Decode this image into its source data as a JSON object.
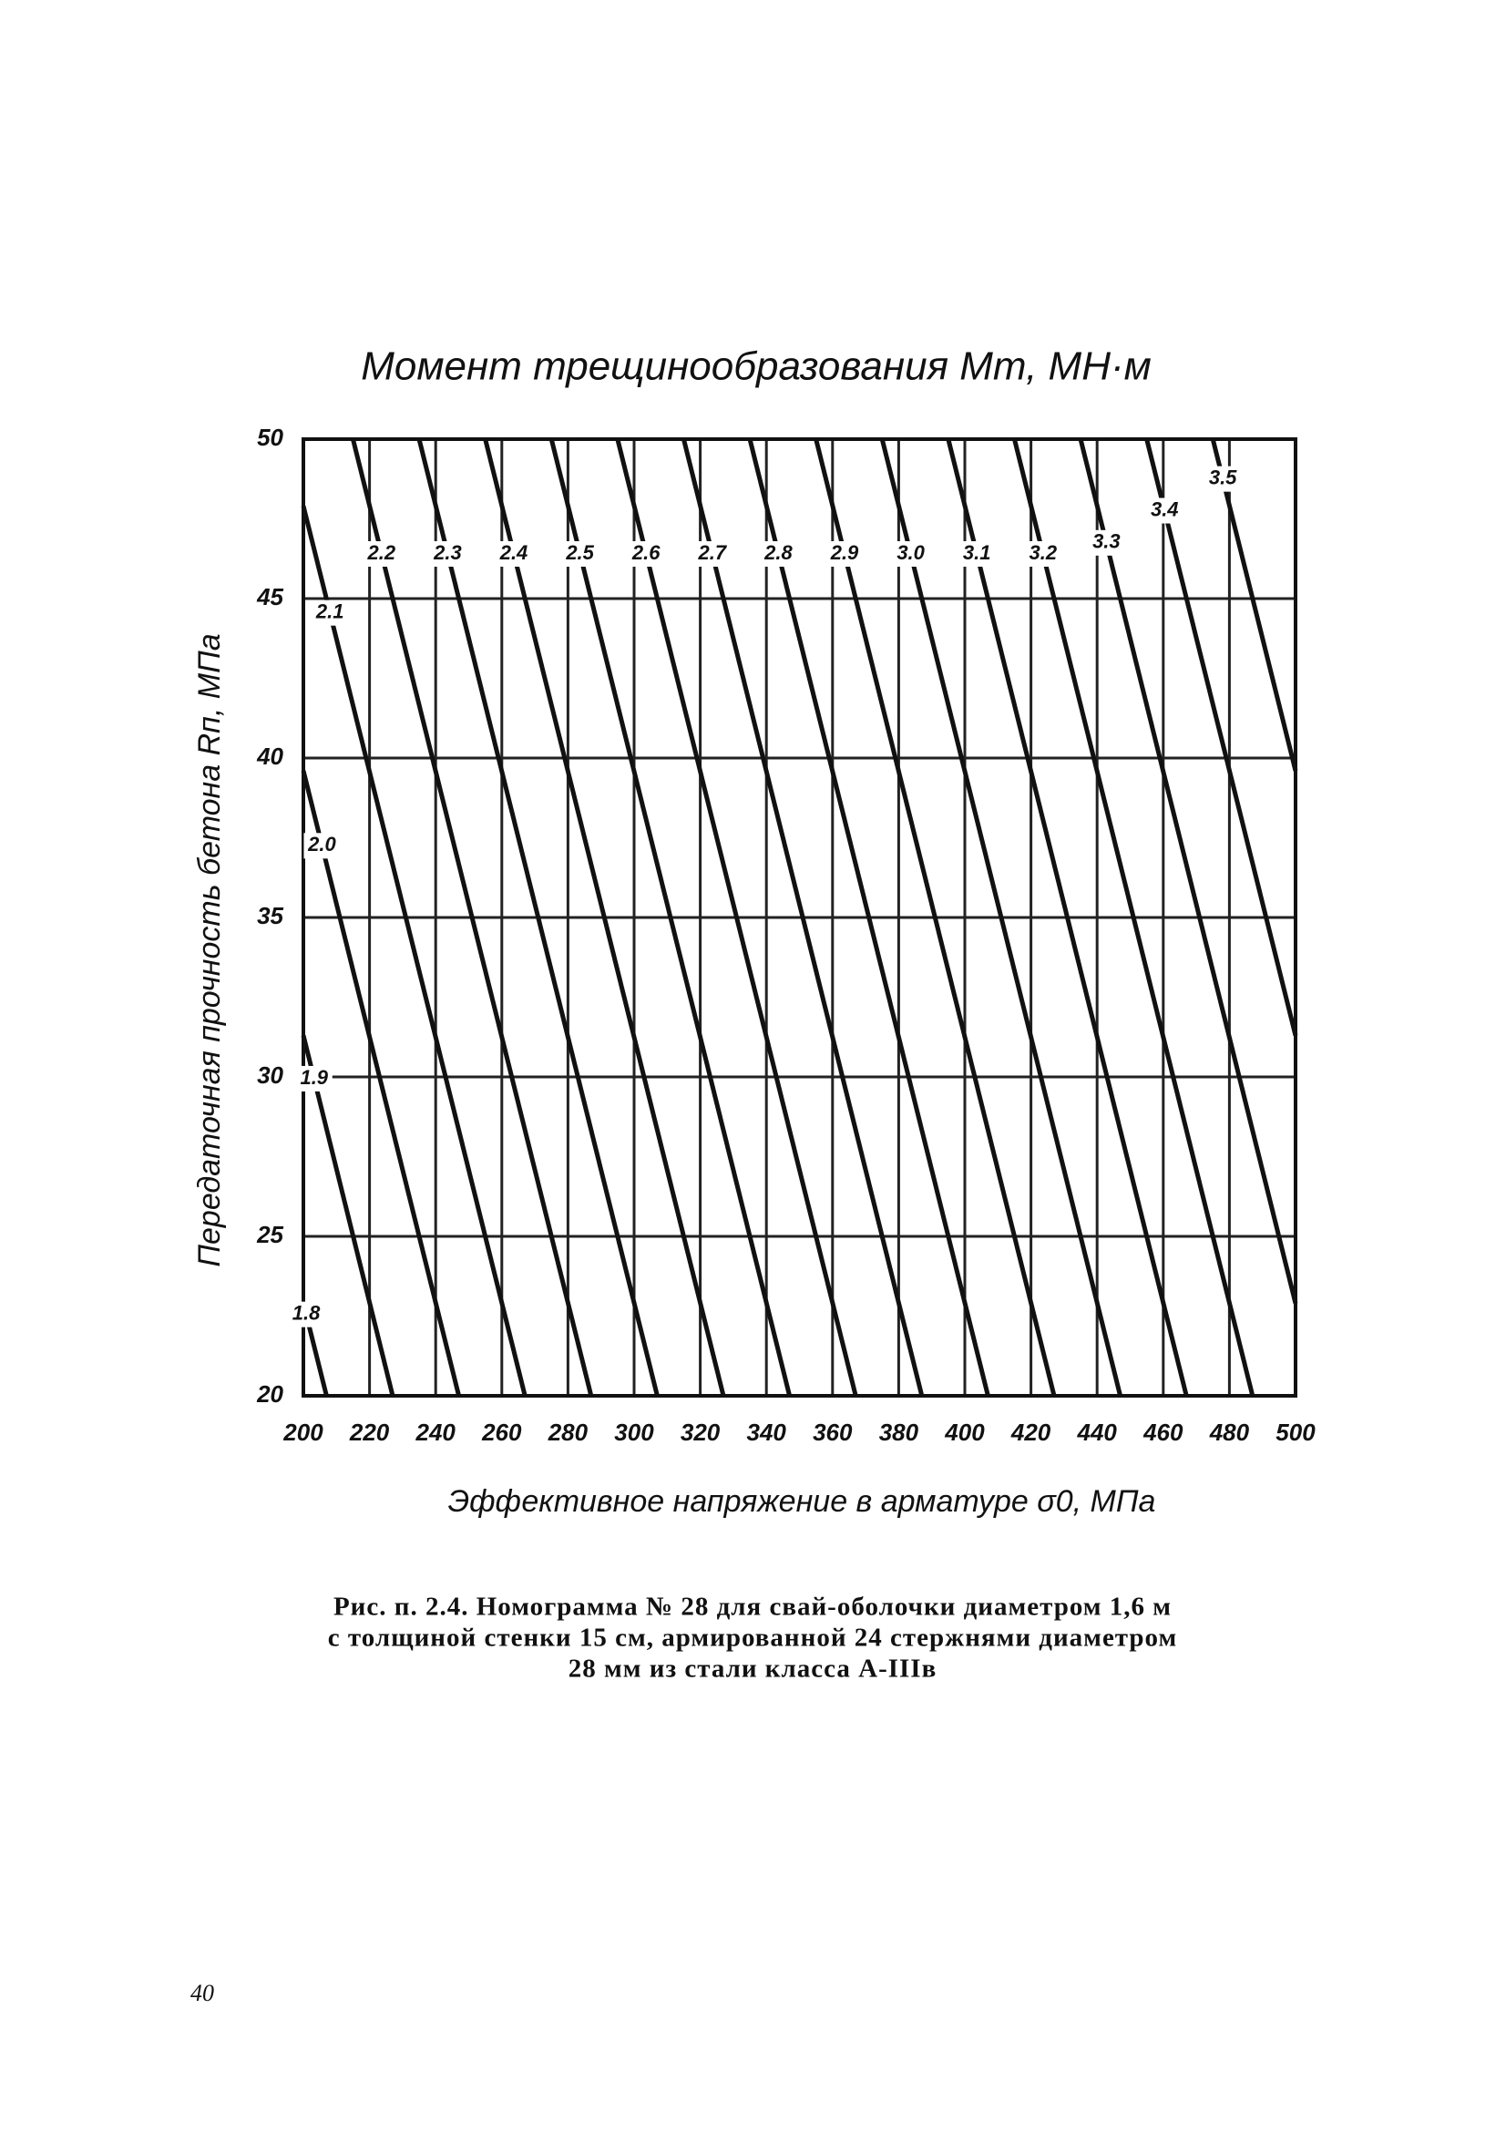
{
  "chart_data": {
    "type": "line",
    "title": "Момент трещинообразования  Мт, МН·м",
    "x_label": "Эффективное напряжение в арматуре σ0, МПа",
    "y_label": "Передаточная прочность бетона Rп, МПа",
    "xlim": [
      200,
      500
    ],
    "ylim": [
      20,
      50
    ],
    "xticks": [
      200,
      220,
      240,
      260,
      280,
      300,
      320,
      340,
      360,
      380,
      400,
      420,
      440,
      460,
      480,
      500
    ],
    "yticks": [
      20,
      25,
      30,
      35,
      40,
      45,
      50
    ],
    "grid": true,
    "color": "#111",
    "series": [
      {
        "name": "1.8",
        "x": [
          200,
          207
        ],
        "values": [
          22.9,
          20
        ]
      },
      {
        "name": "1.9",
        "x": [
          200,
          227
        ],
        "values": [
          31.3,
          20
        ]
      },
      {
        "name": "2.0",
        "x": [
          200,
          247
        ],
        "values": [
          39.6,
          20
        ]
      },
      {
        "name": "2.1",
        "x": [
          200,
          267
        ],
        "values": [
          47.9,
          20
        ]
      },
      {
        "name": "2.2",
        "x": [
          215,
          287
        ],
        "values": [
          50,
          20
        ]
      },
      {
        "name": "2.3",
        "x": [
          235,
          307
        ],
        "values": [
          50,
          20
        ]
      },
      {
        "name": "2.4",
        "x": [
          255,
          327
        ],
        "values": [
          50,
          20
        ]
      },
      {
        "name": "2.5",
        "x": [
          275,
          347
        ],
        "values": [
          50,
          20
        ]
      },
      {
        "name": "2.6",
        "x": [
          295,
          367
        ],
        "values": [
          50,
          20
        ]
      },
      {
        "name": "2.7",
        "x": [
          315,
          387
        ],
        "values": [
          50,
          20
        ]
      },
      {
        "name": "2.8",
        "x": [
          335,
          407
        ],
        "values": [
          50,
          20
        ]
      },
      {
        "name": "2.9",
        "x": [
          355,
          427
        ],
        "values": [
          50,
          20
        ]
      },
      {
        "name": "3.0",
        "x": [
          375,
          447
        ],
        "values": [
          50,
          20
        ]
      },
      {
        "name": "3.1",
        "x": [
          395,
          467
        ],
        "values": [
          50,
          20
        ]
      },
      {
        "name": "3.2",
        "x": [
          415,
          487
        ],
        "values": [
          50,
          20
        ]
      },
      {
        "name": "3.3",
        "x": [
          435,
          500
        ],
        "values": [
          50,
          22.9
        ]
      },
      {
        "name": "3.4",
        "x": [
          455,
          500
        ],
        "values": [
          50,
          31.3
        ]
      },
      {
        "name": "3.5",
        "x": [
          475,
          500
        ],
        "values": [
          50,
          39.6
        ]
      }
    ]
  },
  "caption": [
    "Рис. п. 2.4. Номограмма № 28 для свай-оболочки диаметром 1,6 м",
    "с толщиной стенки 15 см, армированной 24 стержнями диаметром",
    "28 мм из стали класса А-IIIв"
  ],
  "page_number": "40"
}
